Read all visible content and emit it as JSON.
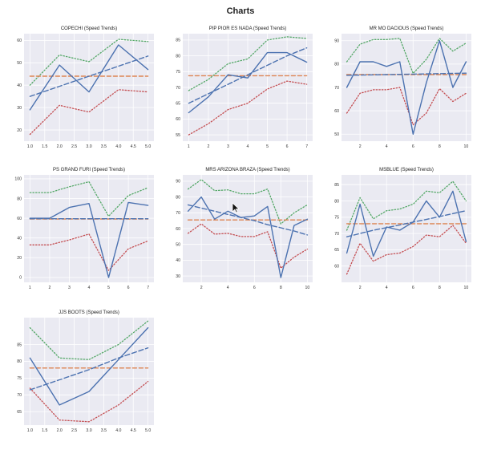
{
  "page": {
    "title": "Charts"
  },
  "colors": {
    "panel_bg": "#eaeaf2",
    "grid": "#ffffff",
    "speed": "#4c72b0",
    "trend": "#4c72b0",
    "average": "#dd8452",
    "upper": "#55a868",
    "lower": "#c44e52"
  },
  "chart_data": [
    {
      "type": "line",
      "title": "COPECHI (Speed Trends)",
      "x": [
        1,
        2,
        3,
        4,
        5
      ],
      "xticks": [
        "1.0",
        "1.5",
        "2.0",
        "2.5",
        "3.0",
        "3.5",
        "4.0",
        "4.5",
        "5.0"
      ],
      "xtick_values": [
        1,
        1.5,
        2,
        2.5,
        3,
        3.5,
        4,
        4.5,
        5
      ],
      "xlim": [
        0.8,
        5.2
      ],
      "yticks": [
        20,
        30,
        40,
        50,
        60
      ],
      "ylim": [
        15,
        63
      ],
      "series": [
        {
          "role": "speed",
          "values": [
            29,
            49,
            37,
            58,
            47
          ]
        },
        {
          "role": "upper",
          "values": [
            40,
            53.5,
            50.5,
            60.5,
            59.5
          ]
        },
        {
          "role": "lower",
          "values": [
            18,
            31,
            28,
            38,
            37
          ]
        },
        {
          "role": "trend",
          "values": [
            35,
            39.5,
            44,
            48.5,
            53
          ]
        },
        {
          "role": "average",
          "values": [
            44,
            44,
            44,
            44,
            44
          ]
        }
      ]
    },
    {
      "type": "line",
      "title": "PIP PIOR ES NADA (Speed Trends)",
      "x": [
        1,
        2,
        3,
        4,
        5,
        6,
        7
      ],
      "xticks": [
        "1",
        "2",
        "3",
        "4",
        "5",
        "6",
        "7"
      ],
      "xtick_values": [
        1,
        2,
        3,
        4,
        5,
        6,
        7
      ],
      "xlim": [
        0.7,
        7.3
      ],
      "yticks": [
        55,
        60,
        65,
        70,
        75,
        80,
        85
      ],
      "ylim": [
        53,
        87
      ],
      "series": [
        {
          "role": "speed",
          "values": [
            62,
            67,
            74,
            73,
            81,
            81,
            78
          ]
        },
        {
          "role": "upper",
          "values": [
            69,
            72.5,
            77.5,
            79,
            85,
            86,
            85.5
          ]
        },
        {
          "role": "lower",
          "values": [
            55,
            58.5,
            63,
            65,
            69.5,
            72,
            71
          ]
        },
        {
          "role": "trend",
          "values": [
            65,
            68,
            71,
            74,
            77,
            80,
            82.5
          ]
        },
        {
          "role": "average",
          "values": [
            73.7,
            73.7,
            73.7,
            73.7,
            73.7,
            73.7,
            73.7
          ]
        }
      ]
    },
    {
      "type": "line",
      "title": "MR MO DACIOUS (Speed Trends)",
      "x": [
        1,
        2,
        3,
        4,
        5,
        6,
        7,
        8,
        9,
        10
      ],
      "xticks": [
        "2",
        "4",
        "6",
        "8",
        "10"
      ],
      "xtick_values": [
        2,
        4,
        6,
        8,
        10
      ],
      "xlim": [
        0.6,
        10.4
      ],
      "yticks": [
        50,
        60,
        70,
        80,
        90
      ],
      "ylim": [
        47,
        93
      ],
      "series": [
        {
          "role": "speed",
          "values": [
            70,
            81,
            81,
            79,
            81,
            50,
            72,
            90,
            70,
            81
          ]
        },
        {
          "role": "upper",
          "values": [
            81,
            88.5,
            90.5,
            90.5,
            91,
            76,
            82,
            91,
            85.5,
            89
          ]
        },
        {
          "role": "lower",
          "values": [
            59,
            67.5,
            69,
            69,
            70,
            54,
            59,
            69.5,
            64,
            67.5
          ]
        },
        {
          "role": "trend",
          "values": [
            75.2,
            75.3,
            75.4,
            75.5,
            75.6,
            75.7,
            75.8,
            75.9,
            76.0,
            76.1
          ]
        },
        {
          "role": "average",
          "values": [
            75.5,
            75.5,
            75.5,
            75.5,
            75.5,
            75.5,
            75.5,
            75.5,
            75.5,
            75.5
          ]
        }
      ]
    },
    {
      "type": "line",
      "title": "PS GRAND FURI (Speed Trends)",
      "x": [
        1,
        2,
        3,
        4,
        5,
        6,
        7
      ],
      "xticks": [
        "1",
        "2",
        "3",
        "4",
        "5",
        "6",
        "7"
      ],
      "xtick_values": [
        1,
        2,
        3,
        4,
        5,
        6,
        7
      ],
      "xlim": [
        0.7,
        7.3
      ],
      "yticks": [
        0,
        20,
        40,
        60,
        80,
        100
      ],
      "ylim": [
        -5,
        104
      ],
      "series": [
        {
          "role": "speed",
          "values": [
            60,
            60,
            71,
            75,
            0,
            76,
            73
          ]
        },
        {
          "role": "upper",
          "values": [
            86,
            86,
            92,
            97,
            62,
            83,
            91
          ]
        },
        {
          "role": "lower",
          "values": [
            33,
            33,
            38,
            44,
            7,
            29,
            37
          ]
        },
        {
          "role": "trend",
          "values": [
            59.5,
            59.5,
            59.5,
            59.5,
            59.5,
            59.5,
            59.5
          ]
        },
        {
          "role": "average",
          "values": [
            59.3,
            59.3,
            59.3,
            59.3,
            59.3,
            59.3,
            59.3
          ]
        }
      ]
    },
    {
      "type": "line",
      "title": "MRS ARIZONA BRAZA (Speed Trends)",
      "x": [
        1,
        2,
        3,
        4,
        5,
        6,
        7,
        8,
        9,
        10
      ],
      "xticks": [
        "2",
        "4",
        "6",
        "8",
        "10"
      ],
      "xtick_values": [
        2,
        4,
        6,
        8,
        10
      ],
      "xlim": [
        0.6,
        10.4
      ],
      "yticks": [
        30,
        40,
        50,
        60,
        70,
        80,
        90
      ],
      "ylim": [
        26,
        94
      ],
      "series": [
        {
          "role": "speed",
          "values": [
            71,
            80,
            66,
            71,
            67,
            68,
            74,
            29,
            62,
            66
          ]
        },
        {
          "role": "upper",
          "values": [
            85,
            91,
            84,
            84.5,
            82,
            82,
            85,
            63,
            70,
            75
          ]
        },
        {
          "role": "lower",
          "values": [
            57,
            63,
            56.5,
            57,
            55,
            55,
            58,
            35,
            42,
            47
          ]
        },
        {
          "role": "trend",
          "values": [
            75,
            73,
            71,
            69,
            67,
            65,
            62.5,
            60.5,
            58.5,
            56
          ]
        },
        {
          "role": "average",
          "values": [
            65.5,
            65.5,
            65.5,
            65.5,
            65.5,
            65.5,
            65.5,
            65.5,
            65.5,
            65.5
          ]
        }
      ]
    },
    {
      "type": "line",
      "title": "MSBLUE (Speed Trends)",
      "x": [
        1,
        2,
        3,
        4,
        5,
        6,
        7,
        8,
        9,
        10
      ],
      "xticks": [
        "2",
        "4",
        "6",
        "8",
        "10"
      ],
      "xtick_values": [
        2,
        4,
        6,
        8,
        10
      ],
      "xlim": [
        0.6,
        10.4
      ],
      "yticks": [
        60,
        65,
        70,
        75,
        80,
        85
      ],
      "ylim": [
        55,
        88
      ],
      "series": [
        {
          "role": "speed",
          "values": [
            64,
            79,
            63,
            72,
            71,
            73.5,
            80,
            75,
            83,
            67.5
          ]
        },
        {
          "role": "upper",
          "values": [
            71,
            81,
            74.5,
            77,
            77.5,
            79,
            83,
            82.5,
            86,
            80
          ]
        },
        {
          "role": "lower",
          "values": [
            57.5,
            67,
            61.5,
            63.5,
            64,
            66,
            69.5,
            69,
            72.5,
            67
          ]
        },
        {
          "role": "trend",
          "values": [
            69,
            70,
            71,
            71.8,
            72.6,
            73.5,
            74.3,
            75.2,
            76.1,
            77
          ]
        },
        {
          "role": "average",
          "values": [
            73,
            73,
            73,
            73,
            73,
            73,
            73,
            73,
            73,
            73
          ]
        }
      ]
    },
    {
      "type": "line",
      "title": "JJS BOOTS (Speed Trends)",
      "x": [
        1,
        2,
        3,
        4,
        5
      ],
      "xticks": [
        "1.0",
        "1.5",
        "2.0",
        "2.5",
        "3.0",
        "3.5",
        "4.0",
        "4.5",
        "5.0"
      ],
      "xtick_values": [
        1,
        1.5,
        2,
        2.5,
        3,
        3.5,
        4,
        4.5,
        5
      ],
      "xlim": [
        0.8,
        5.2
      ],
      "yticks": [
        65,
        70,
        75,
        80,
        85
      ],
      "ylim": [
        61,
        93
      ],
      "series": [
        {
          "role": "speed",
          "values": [
            81,
            67,
            71,
            80.5,
            90
          ]
        },
        {
          "role": "upper",
          "values": [
            90,
            81,
            80.5,
            85,
            92
          ]
        },
        {
          "role": "lower",
          "values": [
            72,
            62.5,
            62,
            67,
            74
          ]
        },
        {
          "role": "trend",
          "values": [
            71.5,
            74.5,
            77.5,
            81,
            84
          ]
        },
        {
          "role": "average",
          "values": [
            78,
            78,
            78,
            78,
            78
          ]
        }
      ]
    }
  ]
}
